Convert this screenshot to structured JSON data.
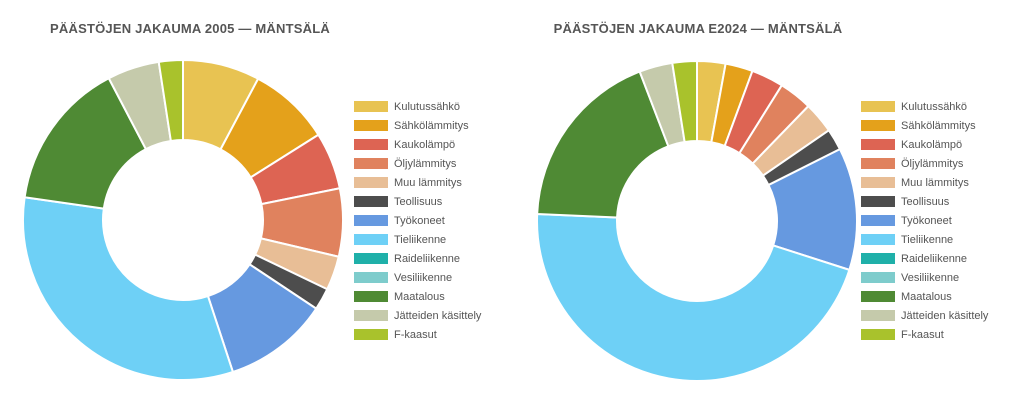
{
  "chart_data": [
    {
      "type": "pie",
      "title": "PÄÄSTÖJEN JAKAUMA 2005 — MÄNTSÄLÄ",
      "donut": true,
      "legend_position": "right",
      "categories": [
        "Kulutussähkö",
        "Sähkölämmitys",
        "Kaukolämpö",
        "Öljylämmitys",
        "Muu lämmitys",
        "Teollisuus",
        "Työkoneet",
        "Tieliikenne",
        "Raideliikenne",
        "Vesiliikenne",
        "Maatalous",
        "Jätteiden käsittely",
        "F-kaasut"
      ],
      "colors": [
        "#E8C352",
        "#E4A11B",
        "#DD6453",
        "#E0825E",
        "#E8BE96",
        "#4D4D4D",
        "#6699E0",
        "#6ED0F6",
        "#1FB0A9",
        "#7ECCCC",
        "#4F8A34",
        "#C5CAAB",
        "#A9C22C"
      ],
      "values": [
        7.7,
        8.2,
        5.7,
        6.8,
        3.4,
        2.2,
        10.5,
        32.0,
        0,
        0,
        14.9,
        5.2,
        2.4
      ]
    },
    {
      "type": "pie",
      "title": "PÄÄSTÖJEN JAKAUMA E2024 — MÄNTSÄLÄ",
      "donut": true,
      "legend_position": "right",
      "categories": [
        "Kulutussähkö",
        "Sähkölämmitys",
        "Kaukolämpö",
        "Öljylämmitys",
        "Muu lämmitys",
        "Teollisuus",
        "Työkoneet",
        "Tieliikenne",
        "Raideliikenne",
        "Vesiliikenne",
        "Maatalous",
        "Jätteiden käsittely",
        "F-kaasut"
      ],
      "colors": [
        "#E8C352",
        "#E4A11B",
        "#DD6453",
        "#E0825E",
        "#E8BE96",
        "#4D4D4D",
        "#6699E0",
        "#6ED0F6",
        "#1FB0A9",
        "#7ECCCC",
        "#4F8A34",
        "#C5CAAB",
        "#A9C22C"
      ],
      "values": [
        2.9,
        2.8,
        3.3,
        3.4,
        3.2,
        2.2,
        12.5,
        46.3,
        0,
        0,
        18.7,
        3.4,
        2.5
      ]
    }
  ]
}
